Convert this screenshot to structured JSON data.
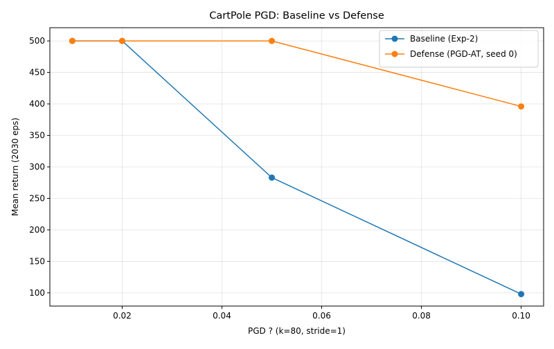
{
  "chart_data": {
    "type": "line",
    "title": "CartPole  PGD: Baseline vs Defense",
    "xlabel": "PGD ? (k=80, stride=1)",
    "ylabel": "Mean return (2030 eps)",
    "xlim": [
      0.0055,
      0.1045
    ],
    "ylim": [
      79,
      521
    ],
    "xticks": [
      0.02,
      0.04,
      0.06,
      0.08,
      0.1
    ],
    "xtick_labels": [
      "0.02",
      "0.04",
      "0.06",
      "0.08",
      "0.10"
    ],
    "yticks": [
      100,
      150,
      200,
      250,
      300,
      350,
      400,
      450,
      500
    ],
    "ytick_labels": [
      "100",
      "150",
      "200",
      "250",
      "300",
      "350",
      "400",
      "450",
      "500"
    ],
    "grid": true,
    "legend_position": "top-right",
    "series": [
      {
        "name": "Baseline (Exp-2)",
        "color": "#1f77b4",
        "marker": "circle",
        "x": [
          0.01,
          0.02,
          0.05,
          0.1
        ],
        "y": [
          500,
          500,
          283,
          98
        ]
      },
      {
        "name": "Defense (PGD-AT, seed 0)",
        "color": "#ff7f0e",
        "marker": "circle",
        "x": [
          0.01,
          0.02,
          0.05,
          0.1
        ],
        "y": [
          500,
          500,
          500,
          396
        ]
      }
    ]
  }
}
